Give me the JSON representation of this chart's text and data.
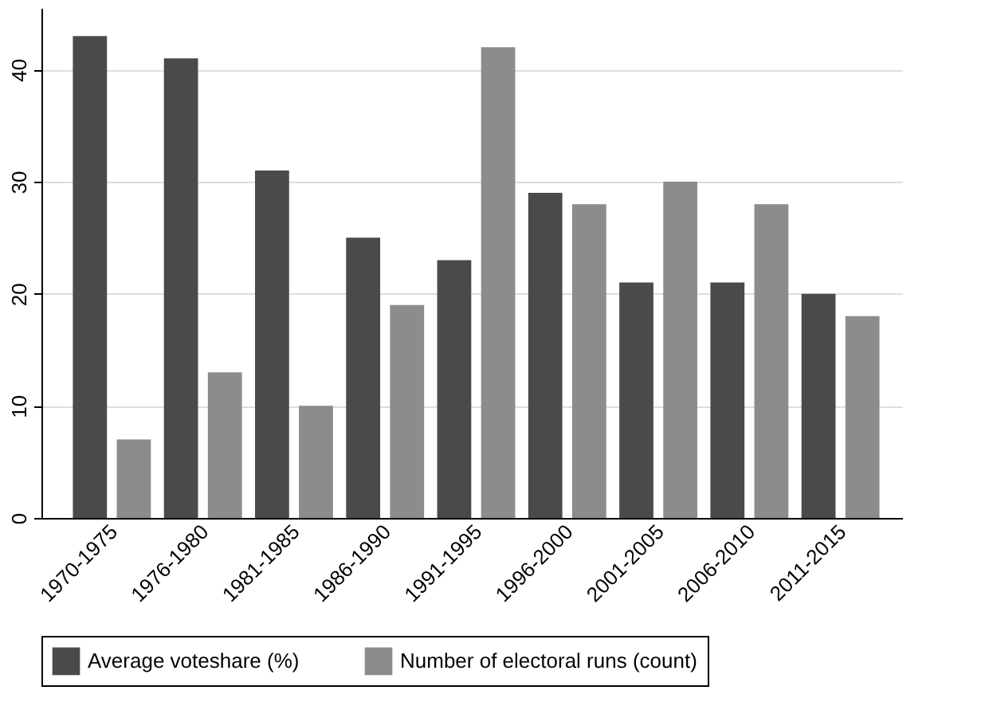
{
  "chart_data": {
    "type": "bar",
    "categories": [
      "1970-1975",
      "1976-1980",
      "1981-1985",
      "1986-1990",
      "1991-1995",
      "1996-2000",
      "2001-2005",
      "2006-2010",
      "2011-2015"
    ],
    "series": [
      {
        "name": "Average voteshare (%)",
        "color": "#4a4a4a",
        "values": [
          43,
          41,
          31,
          25,
          23,
          29,
          21,
          21,
          20
        ]
      },
      {
        "name": "Number of electoral runs (count)",
        "color": "#8c8c8c",
        "values": [
          7,
          13,
          10,
          19,
          42,
          28,
          30,
          28,
          18
        ]
      }
    ],
    "ylim": [
      0,
      45.5
    ],
    "yticks": [
      0,
      10,
      20,
      30,
      40
    ],
    "grid": "y",
    "legend": "bottom"
  }
}
